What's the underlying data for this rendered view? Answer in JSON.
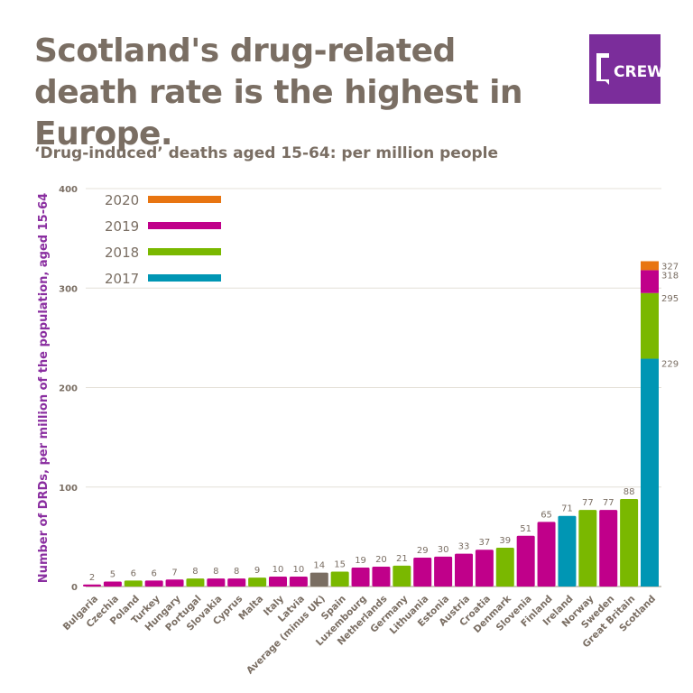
{
  "title": "Scotland's drug-related death rate is the highest in Europe.",
  "subtitle": "‘Drug-induced’ deaths aged 15-64: per million people",
  "logo": {
    "text": "CREW",
    "color": "#7b2d9b"
  },
  "colors": {
    "2020": "#e87511",
    "2019": "#c0008a",
    "2018": "#7ab800",
    "2017": "#0096b4",
    "average": "#7a6e62"
  },
  "chart_data": {
    "type": "bar",
    "title": "",
    "xlabel": "",
    "ylabel": "Number of DRDs, per million of the population, aged 15-64",
    "ylim": [
      0,
      400
    ],
    "yticks": [
      0,
      100,
      200,
      300,
      400
    ],
    "grid": true,
    "legend": {
      "placement": "top-left",
      "entries": [
        "2020",
        "2019",
        "2018",
        "2017"
      ]
    },
    "bars": [
      {
        "category": "Bulgaria",
        "value": 2,
        "year": "2019"
      },
      {
        "category": "Czechia",
        "value": 5,
        "year": "2019"
      },
      {
        "category": "Poland",
        "value": 6,
        "year": "2018"
      },
      {
        "category": "Turkey",
        "value": 6,
        "year": "2019"
      },
      {
        "category": "Hungary",
        "value": 7,
        "year": "2019"
      },
      {
        "category": "Portugal",
        "value": 8,
        "year": "2018"
      },
      {
        "category": "Slovakia",
        "value": 8,
        "year": "2019"
      },
      {
        "category": "Cyprus",
        "value": 8,
        "year": "2019"
      },
      {
        "category": "Malta",
        "value": 9,
        "year": "2018"
      },
      {
        "category": "Italy",
        "value": 10,
        "year": "2019"
      },
      {
        "category": "Latvia",
        "value": 10,
        "year": "2019"
      },
      {
        "category": "Average (minus UK)",
        "value": 14,
        "year": "average"
      },
      {
        "category": "Spain",
        "value": 15,
        "year": "2018"
      },
      {
        "category": "Luxembourg",
        "value": 19,
        "year": "2019"
      },
      {
        "category": "Netherlands",
        "value": 20,
        "year": "2019"
      },
      {
        "category": "Germany",
        "value": 21,
        "year": "2018"
      },
      {
        "category": "Lithuania",
        "value": 29,
        "year": "2019"
      },
      {
        "category": "Estonia",
        "value": 30,
        "year": "2019"
      },
      {
        "category": "Austria",
        "value": 33,
        "year": "2019"
      },
      {
        "category": "Croatia",
        "value": 37,
        "year": "2019"
      },
      {
        "category": "Denmark",
        "value": 39,
        "year": "2018"
      },
      {
        "category": "Slovenia",
        "value": 51,
        "year": "2019"
      },
      {
        "category": "Finland",
        "value": 65,
        "year": "2019"
      },
      {
        "category": "Ireland",
        "value": 71,
        "year": "2017"
      },
      {
        "category": "Norway",
        "value": 77,
        "year": "2018"
      },
      {
        "category": "Sweden",
        "value": 77,
        "year": "2019"
      },
      {
        "category": "Great Britain",
        "value": 88,
        "year": "2018"
      },
      {
        "category": "Scotland",
        "stacked": [
          {
            "year": "2017",
            "value": 229
          },
          {
            "year": "2018",
            "value": 295
          },
          {
            "year": "2019",
            "value": 318
          },
          {
            "year": "2020",
            "value": 327
          }
        ]
      }
    ]
  }
}
